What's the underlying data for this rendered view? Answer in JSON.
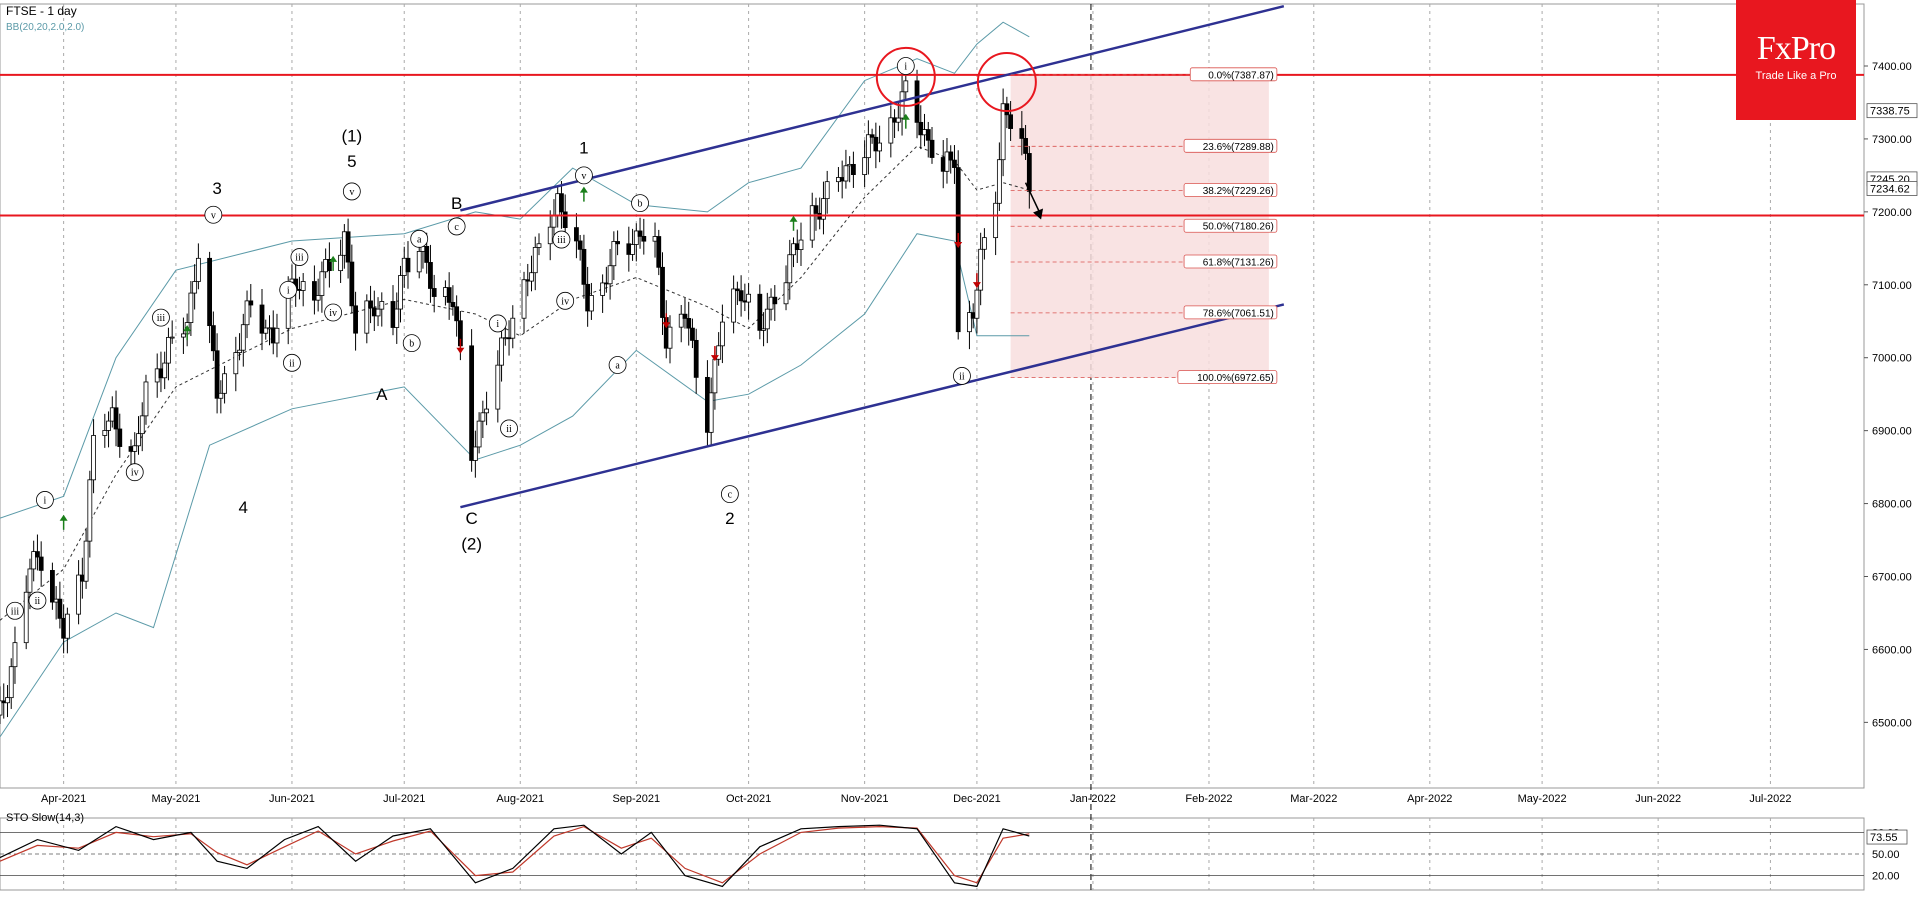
{
  "header": {
    "title": "FTSE - 1 day",
    "indicator": "BB(20,20,2.0,2.0)"
  },
  "logo": {
    "brand": "FxPro",
    "tagline": "Trade Like a Pro"
  },
  "sto": {
    "label": "STO Slow(14,3)",
    "levels": [
      "80.00",
      "50.00",
      "20.00"
    ],
    "current": "73.55"
  },
  "colors": {
    "background": "#ffffff",
    "resistance": "#e8171f",
    "channel": "#2e3192",
    "bands": "#5b9aa8",
    "candle": "#000000",
    "fib_zone": "#f8dede",
    "fib_line": "#d9534f",
    "up_arrow": "#1a7f1a",
    "down_arrow": "#c00000",
    "sto_k": "#000000",
    "sto_d": "#c0392b"
  },
  "chart_data": {
    "type": "candlestick",
    "instrument": "FTSE",
    "timeframe": "1 day",
    "y_range": [
      6410,
      7485
    ],
    "x_range": [
      "2021-03-15",
      "2022-07-26"
    ],
    "y_ticks": [
      6500,
      6600,
      6700,
      6800,
      6900,
      7000,
      7100,
      7200,
      7300,
      7400
    ],
    "y_tick_labels": [
      "6500.00",
      "6600.00",
      "6700.00",
      "6800.00",
      "6900.00",
      "7000.00",
      "7100.00",
      "7200.00",
      "7300.00",
      "7400.00"
    ],
    "price_markers": [
      "7338.75",
      "7245.20",
      "7234.62"
    ],
    "x_ticks": [
      "2021-04-01",
      "2021-05-01",
      "2021-06-01",
      "2021-07-01",
      "2021-08-01",
      "2021-09-01",
      "2021-10-01",
      "2021-11-01",
      "2021-12-01",
      "2022-01-01",
      "2022-02-01",
      "2022-03-01",
      "2022-04-01",
      "2022-05-01",
      "2022-06-01",
      "2022-07-01"
    ],
    "x_tick_labels": [
      "Apr-2021",
      "May-2021",
      "Jun-2021",
      "Jul-2021",
      "Aug-2021",
      "Sep-2021",
      "Oct-2021",
      "Nov-2021",
      "Dec-2021",
      "Jan-2022",
      "Feb-2022",
      "Mar-2022",
      "Apr-2022",
      "May-2022",
      "Jun-2022",
      "Jul-2022"
    ],
    "price_path": [
      [
        "2021-03-15",
        6510
      ],
      [
        "2021-03-19",
        6600
      ],
      [
        "2021-03-23",
        6710
      ],
      [
        "2021-03-26",
        6730
      ],
      [
        "2021-04-01",
        6620
      ],
      [
        "2021-04-06",
        6710
      ],
      [
        "2021-04-09",
        6880
      ],
      [
        "2021-04-14",
        6920
      ],
      [
        "2021-04-20",
        6860
      ],
      [
        "2021-04-23",
        6960
      ],
      [
        "2021-04-28",
        7000
      ],
      [
        "2021-05-04",
        7050
      ],
      [
        "2021-05-07",
        7150
      ],
      [
        "2021-05-12",
        6950
      ],
      [
        "2021-05-17",
        7010
      ],
      [
        "2021-05-21",
        7070
      ],
      [
        "2021-05-27",
        7030
      ],
      [
        "2021-06-02",
        7110
      ],
      [
        "2021-06-07",
        7080
      ],
      [
        "2021-06-11",
        7130
      ],
      [
        "2021-06-15",
        7170
      ],
      [
        "2021-06-18",
        7030
      ],
      [
        "2021-06-23",
        7080
      ],
      [
        "2021-06-28",
        7040
      ],
      [
        "2021-07-01",
        7130
      ],
      [
        "2021-07-05",
        7160
      ],
      [
        "2021-07-09",
        7080
      ],
      [
        "2021-07-14",
        7090
      ],
      [
        "2021-07-19",
        6860
      ],
      [
        "2021-07-23",
        6950
      ],
      [
        "2021-07-28",
        7020
      ],
      [
        "2021-08-03",
        7120
      ],
      [
        "2021-08-06",
        7140
      ],
      [
        "2021-08-11",
        7220
      ],
      [
        "2021-08-16",
        7150
      ],
      [
        "2021-08-19",
        7080
      ],
      [
        "2021-08-23",
        7100
      ],
      [
        "2021-08-27",
        7150
      ],
      [
        "2021-09-02",
        7170
      ],
      [
        "2021-09-06",
        7150
      ],
      [
        "2021-09-09",
        7030
      ],
      [
        "2021-09-14",
        7060
      ],
      [
        "2021-09-17",
        6980
      ],
      [
        "2021-09-20",
        6920
      ],
      [
        "2021-09-24",
        7050
      ],
      [
        "2021-09-29",
        7100
      ],
      [
        "2021-10-04",
        7030
      ],
      [
        "2021-10-08",
        7090
      ],
      [
        "2021-10-13",
        7140
      ],
      [
        "2021-10-18",
        7200
      ],
      [
        "2021-10-22",
        7220
      ],
      [
        "2021-10-27",
        7260
      ],
      [
        "2021-11-01",
        7280
      ],
      [
        "2021-11-05",
        7300
      ],
      [
        "2021-11-10",
        7340
      ],
      [
        "2021-11-12",
        7360
      ],
      [
        "2021-11-17",
        7310
      ],
      [
        "2021-11-22",
        7250
      ],
      [
        "2021-11-25",
        7280
      ],
      [
        "2021-11-26",
        7040
      ],
      [
        "2021-11-30",
        7060
      ],
      [
        "2021-12-02",
        7130
      ],
      [
        "2021-12-06",
        7230
      ],
      [
        "2021-12-08",
        7340
      ],
      [
        "2021-12-09",
        7330
      ],
      [
        "2021-12-13",
        7290
      ],
      [
        "2021-12-15",
        7240
      ]
    ],
    "bb_upper": [
      [
        "2021-03-15",
        6780
      ],
      [
        "2021-04-01",
        6810
      ],
      [
        "2021-04-15",
        7000
      ],
      [
        "2021-05-01",
        7120
      ],
      [
        "2021-06-01",
        7160
      ],
      [
        "2021-07-01",
        7170
      ],
      [
        "2021-07-20",
        7200
      ],
      [
        "2021-08-01",
        7190
      ],
      [
        "2021-08-15",
        7260
      ],
      [
        "2021-09-01",
        7210
      ],
      [
        "2021-09-20",
        7200
      ],
      [
        "2021-10-01",
        7240
      ],
      [
        "2021-10-15",
        7260
      ],
      [
        "2021-11-01",
        7380
      ],
      [
        "2021-11-15",
        7410
      ],
      [
        "2021-11-25",
        7390
      ],
      [
        "2021-12-01",
        7430
      ],
      [
        "2021-12-08",
        7460
      ],
      [
        "2021-12-15",
        7440
      ]
    ],
    "bb_middle": [
      [
        "2021-03-15",
        6640
      ],
      [
        "2021-04-01",
        6710
      ],
      [
        "2021-04-15",
        6840
      ],
      [
        "2021-05-01",
        6960
      ],
      [
        "2021-06-01",
        7040
      ],
      [
        "2021-07-01",
        7080
      ],
      [
        "2021-07-20",
        7060
      ],
      [
        "2021-08-01",
        7030
      ],
      [
        "2021-08-15",
        7080
      ],
      [
        "2021-09-01",
        7110
      ],
      [
        "2021-09-20",
        7070
      ],
      [
        "2021-10-01",
        7040
      ],
      [
        "2021-10-15",
        7110
      ],
      [
        "2021-11-01",
        7220
      ],
      [
        "2021-11-15",
        7290
      ],
      [
        "2021-11-25",
        7270
      ],
      [
        "2021-12-01",
        7230
      ],
      [
        "2021-12-08",
        7240
      ],
      [
        "2021-12-15",
        7230
      ]
    ],
    "bb_lower": [
      [
        "2021-03-15",
        6480
      ],
      [
        "2021-04-01",
        6610
      ],
      [
        "2021-04-15",
        6650
      ],
      [
        "2021-04-25",
        6630
      ],
      [
        "2021-05-10",
        6880
      ],
      [
        "2021-06-01",
        6930
      ],
      [
        "2021-07-01",
        6960
      ],
      [
        "2021-07-20",
        6860
      ],
      [
        "2021-08-01",
        6880
      ],
      [
        "2021-08-15",
        6920
      ],
      [
        "2021-09-01",
        7010
      ],
      [
        "2021-09-20",
        6940
      ],
      [
        "2021-10-01",
        6950
      ],
      [
        "2021-10-15",
        6990
      ],
      [
        "2021-11-01",
        7060
      ],
      [
        "2021-11-15",
        7170
      ],
      [
        "2021-11-25",
        7160
      ],
      [
        "2021-12-01",
        7030
      ],
      [
        "2021-12-08",
        7030
      ],
      [
        "2021-12-15",
        7030
      ]
    ],
    "resistance_levels": [
      7387.87,
      7195
    ],
    "channel_lines": [
      {
        "from": [
          "2021-07-16",
          7202
        ],
        "to": [
          "2022-02-21",
          7482
        ]
      },
      {
        "from": [
          "2021-07-16",
          6795
        ],
        "to": [
          "2022-02-21",
          7073
        ]
      }
    ],
    "fibonacci": {
      "zone_from": "2021-12-10",
      "zone_to": "2022-02-17",
      "levels": [
        {
          "value": 7387.87,
          "label": "0.0%(7387.87)"
        },
        {
          "value": 7289.88,
          "label": "23.6%(7289.88)"
        },
        {
          "value": 7229.26,
          "label": "38.2%(7229.26)"
        },
        {
          "value": 7180.26,
          "label": "50.0%(7180.26)"
        },
        {
          "value": 7131.26,
          "label": "61.8%(7131.26)"
        },
        {
          "value": 7061.51,
          "label": "78.6%(7061.51)"
        },
        {
          "value": 6972.65,
          "label": "100.0%(6972.65)"
        }
      ]
    },
    "circles": [
      [
        "2021-11-12",
        7385
      ],
      [
        "2021-12-09",
        7378
      ]
    ],
    "forecast_arrow": {
      "from": [
        "2021-12-14",
        7240
      ],
      "to": [
        "2021-12-16",
        7195
      ]
    },
    "wave_labels": [
      {
        "t": "v",
        "d": "2021-05-11",
        "p": 7196,
        "c": true
      },
      {
        "t": "3",
        "d": "2021-05-12",
        "p": 7233,
        "c": false
      },
      {
        "t": "4",
        "d": "2021-05-19",
        "p": 6795,
        "c": false
      },
      {
        "t": "i",
        "d": "2021-05-31",
        "p": 7093,
        "c": true
      },
      {
        "t": "ii",
        "d": "2021-06-01",
        "p": 6993,
        "c": true
      },
      {
        "t": "iii",
        "d": "2021-06-03",
        "p": 7138,
        "c": true
      },
      {
        "t": "iv",
        "d": "2021-06-12",
        "p": 7062,
        "c": true
      },
      {
        "t": "v",
        "d": "2021-06-17",
        "p": 7228,
        "c": true
      },
      {
        "t": "5",
        "d": "2021-06-17",
        "p": 7270,
        "c": false
      },
      {
        "t": "(1)",
        "d": "2021-06-17",
        "p": 7305,
        "c": false
      },
      {
        "t": "A",
        "d": "2021-06-25",
        "p": 6950,
        "c": false
      },
      {
        "t": "a",
        "d": "2021-07-05",
        "p": 7163,
        "c": true
      },
      {
        "t": "b",
        "d": "2021-07-03",
        "p": 7020,
        "c": true
      },
      {
        "t": "c",
        "d": "2021-07-15",
        "p": 7180,
        "c": true
      },
      {
        "t": "B",
        "d": "2021-07-15",
        "p": 7212,
        "c": false
      },
      {
        "t": "C",
        "d": "2021-07-19",
        "p": 6780,
        "c": false
      },
      {
        "t": "(2)",
        "d": "2021-07-19",
        "p": 6745,
        "c": false
      },
      {
        "t": "i",
        "d": "2021-07-26",
        "p": 7047,
        "c": true
      },
      {
        "t": "ii",
        "d": "2021-07-29",
        "p": 6903,
        "c": true
      },
      {
        "t": "iii",
        "d": "2021-08-12",
        "p": 7162,
        "c": true
      },
      {
        "t": "iv",
        "d": "2021-08-13",
        "p": 7078,
        "c": true
      },
      {
        "t": "v",
        "d": "2021-08-18",
        "p": 7250,
        "c": true
      },
      {
        "t": "1",
        "d": "2021-08-18",
        "p": 7288,
        "c": false
      },
      {
        "t": "a",
        "d": "2021-08-27",
        "p": 6990,
        "c": true
      },
      {
        "t": "b",
        "d": "2021-09-02",
        "p": 7212,
        "c": true
      },
      {
        "t": "c",
        "d": "2021-09-26",
        "p": 6813,
        "c": true
      },
      {
        "t": "2",
        "d": "2021-09-26",
        "p": 6780,
        "c": false
      },
      {
        "t": "i",
        "d": "2021-11-12",
        "p": 7400,
        "c": true
      },
      {
        "t": "ii",
        "d": "2021-11-27",
        "p": 6975,
        "c": true
      },
      {
        "t": "iii",
        "d": "2021-03-19",
        "p": 6653,
        "c": true
      },
      {
        "t": "i",
        "d": "2021-03-27",
        "p": 6805,
        "c": true
      },
      {
        "t": "ii",
        "d": "2021-03-25",
        "p": 6667,
        "c": true
      },
      {
        "t": "iii",
        "d": "2021-04-27",
        "p": 7055,
        "c": true
      },
      {
        "t": "iv",
        "d": "2021-04-20",
        "p": 6843,
        "c": true
      }
    ],
    "signal_arrows": [
      {
        "d": "2021-04-01",
        "p": 6775,
        "dir": "up"
      },
      {
        "d": "2021-05-04",
        "p": 7035,
        "dir": "up"
      },
      {
        "d": "2021-06-12",
        "p": 7130,
        "dir": "up"
      },
      {
        "d": "2021-07-16",
        "p": 7015,
        "dir": "down"
      },
      {
        "d": "2021-08-18",
        "p": 7225,
        "dir": "up"
      },
      {
        "d": "2021-09-09",
        "p": 7050,
        "dir": "down"
      },
      {
        "d": "2021-09-22",
        "p": 7005,
        "dir": "down"
      },
      {
        "d": "2021-10-13",
        "p": 7185,
        "dir": "up"
      },
      {
        "d": "2021-11-12",
        "p": 7325,
        "dir": "up"
      },
      {
        "d": "2021-11-26",
        "p": 7160,
        "dir": "down"
      },
      {
        "d": "2021-12-01",
        "p": 7105,
        "dir": "down"
      }
    ],
    "sto_k": [
      [
        "2021-03-15",
        45
      ],
      [
        "2021-03-25",
        70
      ],
      [
        "2021-04-05",
        55
      ],
      [
        "2021-04-15",
        88
      ],
      [
        "2021-04-25",
        70
      ],
      [
        "2021-05-05",
        80
      ],
      [
        "2021-05-12",
        40
      ],
      [
        "2021-05-20",
        30
      ],
      [
        "2021-05-30",
        70
      ],
      [
        "2021-06-08",
        88
      ],
      [
        "2021-06-18",
        40
      ],
      [
        "2021-06-28",
        75
      ],
      [
        "2021-07-08",
        85
      ],
      [
        "2021-07-20",
        10
      ],
      [
        "2021-07-30",
        30
      ],
      [
        "2021-08-10",
        85
      ],
      [
        "2021-08-18",
        90
      ],
      [
        "2021-08-28",
        50
      ],
      [
        "2021-09-05",
        80
      ],
      [
        "2021-09-14",
        20
      ],
      [
        "2021-09-24",
        5
      ],
      [
        "2021-10-04",
        60
      ],
      [
        "2021-10-15",
        85
      ],
      [
        "2021-10-25",
        88
      ],
      [
        "2021-11-05",
        90
      ],
      [
        "2021-11-15",
        85
      ],
      [
        "2021-11-25",
        10
      ],
      [
        "2021-12-01",
        5
      ],
      [
        "2021-12-08",
        85
      ],
      [
        "2021-12-15",
        75
      ]
    ],
    "sto_d": [
      [
        "2021-03-15",
        40
      ],
      [
        "2021-03-25",
        62
      ],
      [
        "2021-04-05",
        58
      ],
      [
        "2021-04-15",
        80
      ],
      [
        "2021-04-25",
        74
      ],
      [
        "2021-05-05",
        78
      ],
      [
        "2021-05-12",
        52
      ],
      [
        "2021-05-20",
        35
      ],
      [
        "2021-05-30",
        60
      ],
      [
        "2021-06-08",
        82
      ],
      [
        "2021-06-18",
        50
      ],
      [
        "2021-06-28",
        68
      ],
      [
        "2021-07-08",
        82
      ],
      [
        "2021-07-20",
        20
      ],
      [
        "2021-07-30",
        25
      ],
      [
        "2021-08-10",
        75
      ],
      [
        "2021-08-18",
        88
      ],
      [
        "2021-08-28",
        58
      ],
      [
        "2021-09-05",
        72
      ],
      [
        "2021-09-14",
        30
      ],
      [
        "2021-09-24",
        10
      ],
      [
        "2021-10-04",
        50
      ],
      [
        "2021-10-15",
        80
      ],
      [
        "2021-10-25",
        86
      ],
      [
        "2021-11-05",
        88
      ],
      [
        "2021-11-15",
        86
      ],
      [
        "2021-11-25",
        20
      ],
      [
        "2021-12-01",
        10
      ],
      [
        "2021-12-08",
        72
      ],
      [
        "2021-12-15",
        78
      ]
    ]
  }
}
